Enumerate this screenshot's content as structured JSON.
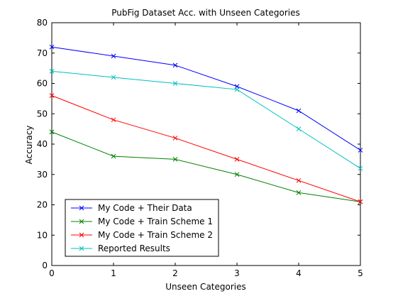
{
  "chart_data": {
    "type": "line",
    "title": "PubFig Dataset Acc. with Unseen Categories",
    "xlabel": "Unseen Categories",
    "ylabel": "Accuracy",
    "xlim": [
      0,
      5
    ],
    "ylim": [
      0,
      80
    ],
    "x_ticks": [
      0,
      1,
      2,
      3,
      4,
      5
    ],
    "y_ticks": [
      0,
      10,
      20,
      30,
      40,
      50,
      60,
      70,
      80
    ],
    "grid": false,
    "legend_position": "bottom-left",
    "marker": "x",
    "x": [
      0,
      1,
      2,
      3,
      4,
      5
    ],
    "series": [
      {
        "name": "My Code + Their Data",
        "color": "#0000ff",
        "values": [
          72,
          69,
          66,
          59,
          51,
          38
        ]
      },
      {
        "name": "My Code + Train Scheme 1",
        "color": "#008000",
        "values": [
          44,
          36,
          35,
          30,
          24,
          21
        ]
      },
      {
        "name": "My Code + Train Scheme 2",
        "color": "#ff0000",
        "values": [
          56,
          48,
          42,
          35,
          28,
          21
        ]
      },
      {
        "name": "Reported Results",
        "color": "#00bfbf",
        "values": [
          64,
          62,
          60,
          58,
          45,
          32
        ]
      }
    ]
  }
}
